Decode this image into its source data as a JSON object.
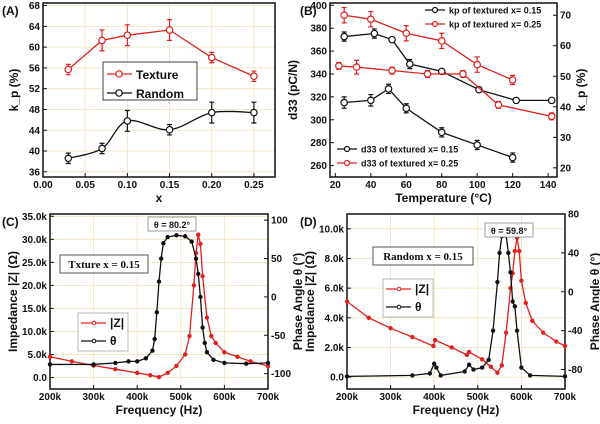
{
  "colors": {
    "red": "#e0201e",
    "black": "#111111",
    "grid": "#efe3b8"
  },
  "chart_data": [
    {
      "panel": "(A)",
      "type": "line",
      "xlabel": "x",
      "ylabel": "k_p (%)",
      "xlim": [
        0,
        0.275
      ],
      "ylim": [
        35,
        68.5
      ],
      "xticks": [
        0.0,
        0.05,
        0.1,
        0.15,
        0.2,
        0.25
      ],
      "yticks": [
        36,
        40,
        44,
        48,
        52,
        56,
        60,
        64,
        68
      ],
      "grid": true,
      "legend": "center",
      "series": [
        {
          "name": "Texture",
          "color": "#e0201e",
          "x": [
            0.03,
            0.07,
            0.1,
            0.15,
            0.2,
            0.25
          ],
          "y": [
            55.7,
            61.3,
            62.3,
            63.3,
            58.0,
            54.4
          ],
          "err": [
            1,
            2,
            2,
            2,
            1,
            1
          ]
        },
        {
          "name": "Random",
          "color": "#111111",
          "smooth": true,
          "x": [
            0.03,
            0.07,
            0.1,
            0.15,
            0.2,
            0.25
          ],
          "y": [
            38.6,
            40.5,
            45.8,
            44.1,
            47.4,
            47.4
          ],
          "err": [
            1,
            1,
            2,
            1,
            2,
            2
          ]
        }
      ]
    },
    {
      "panel": "(B)",
      "type": "line",
      "xlabel": "Temperature (°C)",
      "ylabel": "d33 (pC/N)",
      "y2label": "k_p (%)",
      "xlim": [
        17,
        145
      ],
      "ylim": [
        250,
        402
      ],
      "y2lim": [
        17,
        74
      ],
      "xticks": [
        20,
        40,
        60,
        80,
        100,
        120,
        140
      ],
      "yticks": [
        260,
        280,
        300,
        320,
        340,
        360,
        380,
        400
      ],
      "y2ticks": [
        20,
        30,
        40,
        50,
        60,
        70
      ],
      "grid": false,
      "series": [
        {
          "name": "kp of textured x= 0.15",
          "axis": "right",
          "color": "#111111",
          "x": [
            25,
            42,
            52,
            62,
            80,
            101,
            122,
            142
          ],
          "y": [
            63,
            64,
            62,
            54,
            51.6,
            45.6,
            42.1,
            42.1
          ],
          "err": [
            1.5,
            1.5,
            0.6,
            1.5,
            0.6,
            0.6,
            0.6,
            0.6
          ]
        },
        {
          "name": "kp of textured x= 0.25",
          "axis": "right",
          "color": "#e0201e",
          "x": [
            25,
            40,
            60,
            80,
            100,
            120
          ],
          "y": [
            70,
            68.7,
            64.1,
            61.6,
            53.8,
            48.8
          ],
          "err": [
            2.5,
            2.5,
            2.5,
            2.5,
            2.5,
            1.5
          ]
        },
        {
          "name": "d33 of textured x= 0.15",
          "axis": "left",
          "color": "#111111",
          "x": [
            25,
            40,
            50,
            60,
            80,
            100,
            120
          ],
          "y": [
            315,
            317,
            327,
            310,
            289,
            278,
            267
          ],
          "err": [
            5,
            5,
            4,
            4,
            4,
            4,
            4
          ]
        },
        {
          "name": "d33 of textured x= 0.25",
          "axis": "left",
          "color": "#e0201e",
          "x": [
            22,
            32,
            52,
            72,
            92,
            112,
            142
          ],
          "y": [
            347,
            346,
            343,
            340,
            340,
            313,
            303
          ],
          "err": [
            3,
            6,
            3,
            3,
            3,
            3,
            3
          ]
        }
      ]
    },
    {
      "panel": "(C)",
      "type": "line",
      "xlabel": "Frequency (Hz)",
      "ylabel": "Impedance |Z| (Ω)",
      "y2label": "Phase Angle θ (°)",
      "xlim": [
        200,
        700
      ],
      "ylim": [
        -2.5,
        35.5
      ],
      "y2lim": [
        -120,
        108
      ],
      "xticks": [
        "200k",
        "300k",
        "400k",
        "500k",
        "600k",
        "700k"
      ],
      "yticks": [
        "0.0",
        "5.0k",
        "10.0k",
        "15.0k",
        "20.0k",
        "25.0k",
        "30.0k",
        "35.0k"
      ],
      "y2ticks": [
        -100,
        -50,
        0,
        50,
        100
      ],
      "grid": true,
      "annotation": "θ = 80.2°",
      "label_box": "Txture x = 0.15",
      "series": [
        {
          "name": "|Z|",
          "axis": "left",
          "color": "#e0201e",
          "x": [
            200,
            250,
            300,
            350,
            400,
            430,
            450,
            470,
            490,
            510,
            520,
            530,
            535,
            540,
            545,
            550,
            560,
            570,
            580,
            600,
            630,
            660,
            700
          ],
          "y": [
            4.5,
            3.5,
            2.6,
            1.8,
            1.0,
            0.5,
            0.1,
            1.0,
            2.5,
            5,
            9,
            20,
            27,
            31,
            29,
            22,
            13,
            9,
            7.5,
            5.5,
            4.5,
            3.5,
            2.5
          ]
        },
        {
          "name": "θ",
          "axis": "right",
          "color": "#111111",
          "x": [
            200,
            300,
            350,
            380,
            400,
            420,
            435,
            440,
            445,
            450,
            455,
            460,
            470,
            490,
            510,
            525,
            535,
            540,
            545,
            550,
            555,
            560,
            575,
            600,
            650,
            700
          ],
          "y": [
            -88,
            -88,
            -86,
            -84,
            -84,
            -80,
            -70,
            -55,
            -20,
            20,
            50,
            70,
            78,
            80.2,
            79,
            72,
            50,
            30,
            0,
            -40,
            -60,
            -72,
            -82,
            -86,
            -87,
            -86
          ]
        }
      ]
    },
    {
      "panel": "(D)",
      "type": "line",
      "xlabel": "Frequency (Hz)",
      "ylabel": "Impedance |Z| (Ω)",
      "y2label": "Phase Angle θ (°)",
      "xlim": [
        200,
        700
      ],
      "ylim": [
        -0.8,
        11
      ],
      "y2lim": [
        -100,
        80
      ],
      "xticks": [
        "200k",
        "300k",
        "400k",
        "500k",
        "600k",
        "700k"
      ],
      "yticks": [
        "0.0",
        "2.0k",
        "4.0k",
        "6.0k",
        "8.0k",
        "10.0k"
      ],
      "y2ticks": [
        -80,
        -40,
        0,
        40,
        80
      ],
      "grid": true,
      "annotation": "θ = 59.8°",
      "label_box": "Random x = 0.15",
      "series": [
        {
          "name": "|Z|",
          "axis": "left",
          "color": "#e0201e",
          "x": [
            200,
            250,
            300,
            350,
            398,
            402,
            440,
            475,
            480,
            510,
            530,
            545,
            555,
            565,
            575,
            580,
            585,
            590,
            595,
            600,
            610,
            625,
            650,
            680,
            700
          ],
          "y": [
            5.1,
            4.0,
            3.3,
            2.7,
            2.1,
            2.5,
            2.0,
            1.5,
            1.7,
            1.2,
            0.7,
            0.3,
            0.8,
            3,
            6,
            7,
            8.5,
            9.4,
            8.5,
            6.5,
            5,
            3.8,
            3,
            2.4,
            2.1
          ]
        },
        {
          "name": "θ",
          "axis": "right",
          "color": "#111111",
          "x": [
            200,
            350,
            390,
            400,
            405,
            415,
            470,
            480,
            490,
            510,
            525,
            535,
            545,
            550,
            555,
            560,
            565,
            570,
            575,
            580,
            585,
            590,
            600,
            620,
            700
          ],
          "y": [
            -87,
            -86,
            -84,
            -74,
            -78,
            -86,
            -82,
            -75,
            -80,
            -78,
            -70,
            -40,
            10,
            40,
            57,
            59.8,
            58,
            40,
            20,
            -10,
            -15,
            -40,
            -78,
            -86,
            -87
          ]
        }
      ]
    }
  ]
}
